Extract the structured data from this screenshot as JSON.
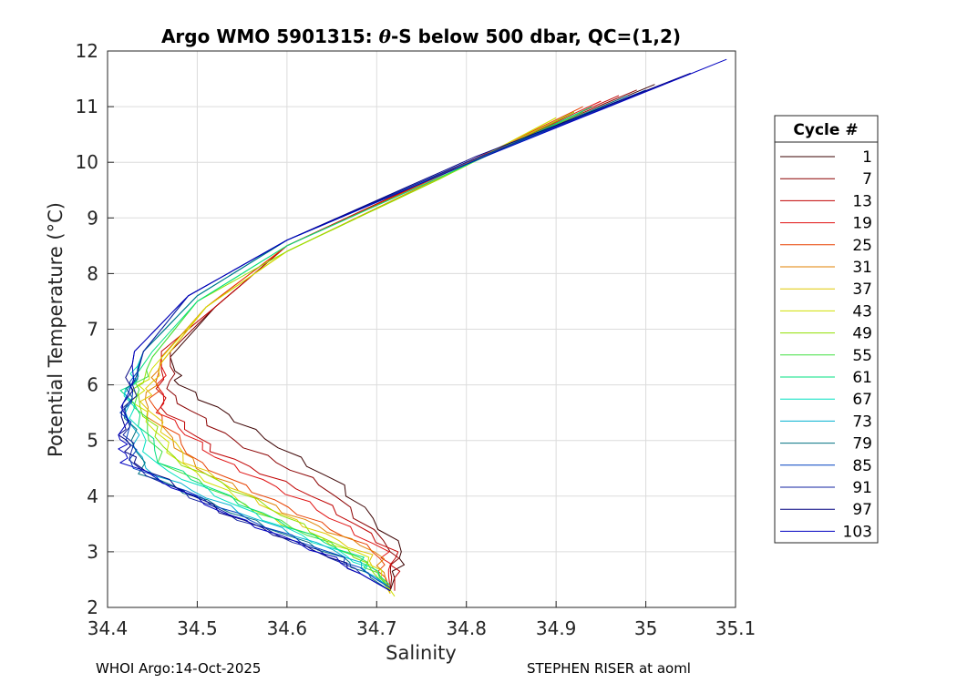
{
  "chart_data": {
    "type": "line",
    "title_prefix": "Argo WMO 5901315: ",
    "title_theta": "θ",
    "title_suffix": "-S below 500 dbar,  QC=(1,2)",
    "xlabel": "Salinity",
    "ylabel": "Potential Temperature (°C)",
    "xlim": [
      34.4,
      35.1
    ],
    "ylim": [
      2,
      12
    ],
    "xticks": [
      "34.4",
      "34.5",
      "34.6",
      "34.7",
      "34.8",
      "34.9",
      "35",
      "35.1"
    ],
    "yticks": [
      "2",
      "3",
      "4",
      "5",
      "6",
      "7",
      "8",
      "9",
      "10",
      "11",
      "12"
    ],
    "grid": true,
    "legend_title": "Cycle #",
    "legend_position": "outside-right",
    "legend_entries": [
      "1",
      "7",
      "13",
      "19",
      "25",
      "31",
      "37",
      "43",
      "49",
      "55",
      "61",
      "67",
      "73",
      "79",
      "85",
      "91",
      "97",
      "103"
    ],
    "legend_colors": [
      "#3a0000",
      "#8b0000",
      "#c00000",
      "#e01010",
      "#e84000",
      "#e08000",
      "#e0c800",
      "#d0e000",
      "#90e000",
      "#40e040",
      "#00e080",
      "#00e0c0",
      "#00b0d0",
      "#007080",
      "#0040c0",
      "#1020a0",
      "#000080",
      "#0000c0"
    ],
    "series": [
      {
        "name": "1",
        "s": [
          35.01,
          34.8,
          34.6,
          34.52,
          34.47,
          34.48,
          34.56,
          34.66,
          34.73,
          34.715
        ],
        "t": [
          11.4,
          10.0,
          8.5,
          7.4,
          6.5,
          6.0,
          5.2,
          4.2,
          3.0,
          2.3
        ]
      },
      {
        "name": "7",
        "s": [
          34.99,
          34.8,
          34.6,
          34.52,
          34.47,
          34.47,
          34.54,
          34.64,
          34.72,
          34.715
        ],
        "t": [
          11.3,
          10.0,
          8.5,
          7.4,
          6.6,
          5.8,
          5.0,
          4.2,
          3.0,
          2.3
        ]
      },
      {
        "name": "13",
        "s": [
          34.97,
          34.8,
          34.6,
          34.52,
          34.46,
          34.46,
          34.52,
          34.63,
          34.72,
          34.72
        ],
        "t": [
          11.2,
          10.0,
          8.5,
          7.4,
          6.6,
          5.6,
          4.8,
          4.0,
          3.0,
          2.3
        ]
      },
      {
        "name": "19",
        "s": [
          34.95,
          34.79,
          34.6,
          34.51,
          34.46,
          34.46,
          34.52,
          34.62,
          34.71,
          34.715
        ],
        "t": [
          11.1,
          9.9,
          8.5,
          7.4,
          6.5,
          5.5,
          4.7,
          3.9,
          3.0,
          2.35
        ]
      },
      {
        "name": "25",
        "s": [
          34.93,
          34.79,
          34.6,
          34.51,
          34.46,
          34.45,
          34.5,
          34.6,
          34.7,
          34.715
        ],
        "t": [
          11.0,
          9.9,
          8.5,
          7.4,
          6.5,
          5.6,
          4.6,
          3.8,
          3.0,
          2.3
        ]
      },
      {
        "name": "31",
        "s": [
          34.92,
          34.78,
          34.6,
          34.51,
          34.46,
          34.44,
          34.5,
          34.6,
          34.7,
          34.715
        ],
        "t": [
          10.9,
          9.8,
          8.4,
          7.4,
          6.4,
          5.6,
          4.5,
          3.7,
          3.0,
          2.25
        ]
      },
      {
        "name": "37",
        "s": [
          34.9,
          34.77,
          34.6,
          34.51,
          34.46,
          34.44,
          34.49,
          34.59,
          34.69,
          34.715
        ],
        "t": [
          10.8,
          9.7,
          8.4,
          7.4,
          6.4,
          5.7,
          4.6,
          3.7,
          2.95,
          2.25
        ]
      },
      {
        "name": "43",
        "s": [
          34.9,
          34.77,
          34.6,
          34.51,
          34.45,
          34.43,
          34.48,
          34.58,
          34.69,
          34.72
        ],
        "t": [
          10.8,
          9.7,
          8.4,
          7.4,
          6.3,
          5.7,
          4.6,
          3.6,
          2.9,
          2.2
        ]
      },
      {
        "name": "49",
        "s": [
          34.92,
          34.77,
          34.6,
          34.5,
          34.45,
          34.43,
          34.47,
          34.58,
          34.68,
          34.715
        ],
        "t": [
          10.9,
          9.7,
          8.4,
          7.5,
          6.5,
          5.8,
          4.7,
          3.8,
          2.9,
          2.3
        ]
      },
      {
        "name": "55",
        "s": [
          34.93,
          34.78,
          34.6,
          34.5,
          34.45,
          34.43,
          34.46,
          34.57,
          34.68,
          34.715
        ],
        "t": [
          10.9,
          9.8,
          8.5,
          7.5,
          6.5,
          5.8,
          4.6,
          3.7,
          2.9,
          2.35
        ]
      },
      {
        "name": "61",
        "s": [
          34.94,
          34.78,
          34.6,
          34.5,
          34.45,
          34.42,
          34.46,
          34.57,
          34.68,
          34.715
        ],
        "t": [
          11.0,
          9.8,
          8.5,
          7.5,
          6.6,
          5.9,
          4.6,
          3.7,
          2.9,
          2.4
        ]
      },
      {
        "name": "67",
        "s": [
          34.95,
          34.79,
          34.6,
          34.5,
          34.44,
          34.42,
          34.45,
          34.56,
          34.67,
          34.71
        ],
        "t": [
          11.0,
          9.9,
          8.6,
          7.6,
          6.6,
          5.8,
          4.6,
          3.7,
          2.9,
          2.4
        ]
      },
      {
        "name": "73",
        "s": [
          34.97,
          34.79,
          34.6,
          34.5,
          34.44,
          34.42,
          34.44,
          34.55,
          34.67,
          34.715
        ],
        "t": [
          11.1,
          9.9,
          8.6,
          7.6,
          6.6,
          5.7,
          4.5,
          3.7,
          2.9,
          2.35
        ]
      },
      {
        "name": "79",
        "s": [
          34.98,
          34.79,
          34.6,
          34.5,
          34.44,
          34.42,
          34.44,
          34.54,
          34.66,
          34.71
        ],
        "t": [
          11.2,
          9.9,
          8.6,
          7.6,
          6.6,
          5.6,
          4.4,
          3.7,
          2.9,
          2.35
        ]
      },
      {
        "name": "85",
        "s": [
          35.0,
          34.8,
          34.6,
          34.49,
          34.44,
          34.42,
          34.43,
          34.54,
          34.66,
          34.715
        ],
        "t": [
          11.3,
          10.0,
          8.6,
          7.6,
          6.6,
          5.5,
          4.5,
          3.7,
          2.9,
          2.35
        ]
      },
      {
        "name": "91",
        "s": [
          35.02,
          34.8,
          34.6,
          34.49,
          34.44,
          34.42,
          34.43,
          34.53,
          34.65,
          34.715
        ],
        "t": [
          11.4,
          10.0,
          8.6,
          7.6,
          6.6,
          5.4,
          4.5,
          3.7,
          2.9,
          2.3
        ]
      },
      {
        "name": "97",
        "s": [
          35.05,
          34.81,
          34.6,
          34.49,
          34.43,
          34.415,
          34.43,
          34.53,
          34.65,
          34.715
        ],
        "t": [
          11.6,
          10.1,
          8.6,
          7.6,
          6.6,
          5.2,
          4.6,
          3.7,
          2.9,
          2.3
        ]
      },
      {
        "name": "103",
        "s": [
          35.09,
          34.82,
          34.6,
          34.49,
          34.43,
          34.415,
          34.42,
          34.53,
          34.65,
          34.715
        ],
        "t": [
          11.85,
          10.1,
          8.6,
          7.6,
          6.6,
          5.1,
          4.6,
          3.7,
          2.9,
          2.3
        ]
      }
    ]
  },
  "footer": {
    "left": "WHOI Argo:14-Oct-2025",
    "right": "STEPHEN RISER at aoml"
  }
}
